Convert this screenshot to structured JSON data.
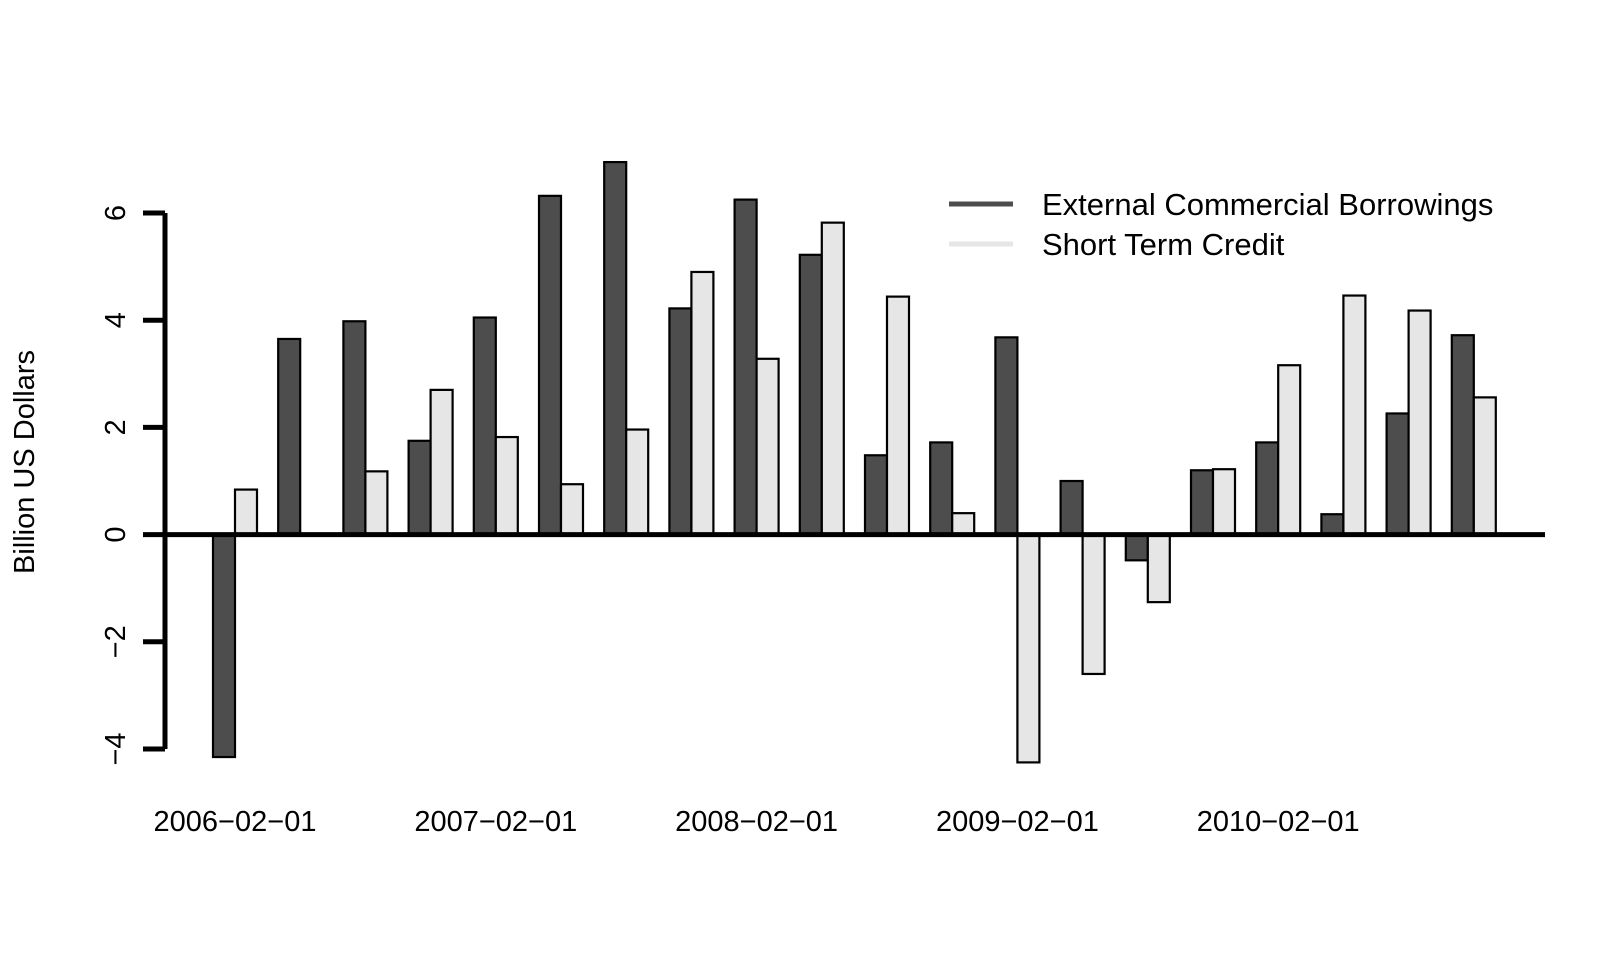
{
  "chart_data": {
    "type": "bar",
    "ylabel": "Billion US Dollars",
    "ylim": [
      -4.2,
      7.2
    ],
    "y_ticks": [
      -4,
      -2,
      0,
      2,
      4,
      6
    ],
    "x_tick_labels": [
      "2006−02−01",
      "2007−02−01",
      "2008−02−01",
      "2009−02−01",
      "2010−02−01"
    ],
    "x_tick_positions": [
      0,
      4,
      8,
      12,
      16
    ],
    "categories": [
      "2006-02-01",
      "2006-05-01",
      "2006-08-01",
      "2006-11-01",
      "2007-02-01",
      "2007-05-01",
      "2007-08-01",
      "2007-11-01",
      "2008-02-01",
      "2008-05-01",
      "2008-08-01",
      "2008-11-01",
      "2009-02-01",
      "2009-05-01",
      "2009-08-01",
      "2009-11-01",
      "2010-02-01",
      "2010-05-01",
      "2010-08-01",
      "2010-11-01"
    ],
    "series": [
      {
        "name": "External Commercial Borrowings",
        "color": "#4d4d4d",
        "values": [
          -4.15,
          3.65,
          3.98,
          1.75,
          4.05,
          6.32,
          6.95,
          4.22,
          6.25,
          5.22,
          1.48,
          1.72,
          3.68,
          1.0,
          -0.48,
          1.2,
          1.72,
          0.38,
          2.26,
          3.72
        ]
      },
      {
        "name": "Short Term Credit",
        "color": "#e6e6e6",
        "values": [
          0.84,
          0,
          1.18,
          2.7,
          1.82,
          0.94,
          1.96,
          4.9,
          3.28,
          5.82,
          4.44,
          0.4,
          -4.25,
          -2.6,
          -1.26,
          1.22,
          3.16,
          4.46,
          4.18,
          2.56
        ]
      }
    ],
    "legend": {
      "placement": "top-right",
      "entries": [
        "External Commercial Borrowings",
        "Short Term Credit"
      ]
    },
    "grid": false
  }
}
